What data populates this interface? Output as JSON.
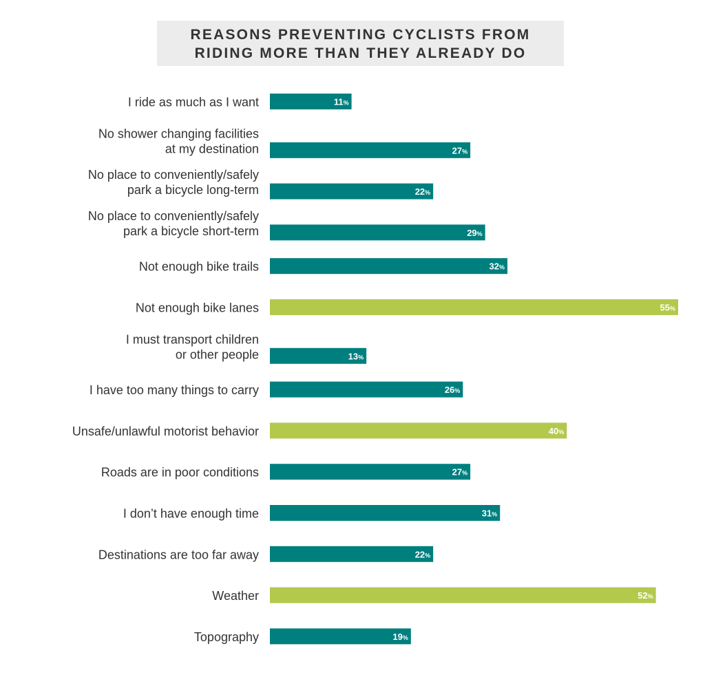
{
  "colors": {
    "normal": "#007f7f",
    "highlight": "#b2c94c",
    "title_bg": "#ececec"
  },
  "chart_data": {
    "type": "bar",
    "orientation": "horizontal",
    "title": "REASONS PREVENTING CYCLISTS FROM RIDING MORE THAN THEY ALREADY DO",
    "title_lines": [
      "REASONS PREVENTING CYCLISTS FROM",
      "RIDING MORE THAN THEY ALREADY DO"
    ],
    "xlim": [
      0,
      55
    ],
    "value_suffix": "%",
    "grid": false,
    "legend": "none",
    "categories": [
      {
        "lines": [
          "I ride as much as I want"
        ],
        "value": 11,
        "highlight": false
      },
      {
        "lines": [
          "No shower changing facilities",
          "at my destination"
        ],
        "value": 27,
        "highlight": false
      },
      {
        "lines": [
          "No place to conveniently/safely",
          "park a bicycle long-term"
        ],
        "value": 22,
        "highlight": false
      },
      {
        "lines": [
          "No place to conveniently/safely",
          "park a bicycle short-term"
        ],
        "value": 29,
        "highlight": false
      },
      {
        "lines": [
          "Not enough bike trails"
        ],
        "value": 32,
        "highlight": false
      },
      {
        "lines": [
          "Not enough bike lanes"
        ],
        "value": 55,
        "highlight": true
      },
      {
        "lines": [
          "I must transport children",
          "or other people"
        ],
        "value": 13,
        "highlight": false
      },
      {
        "lines": [
          "I have too many things to carry"
        ],
        "value": 26,
        "highlight": false
      },
      {
        "lines": [
          "Unsafe/unlawful motorist behavior"
        ],
        "value": 40,
        "highlight": true
      },
      {
        "lines": [
          "Roads are in poor conditions"
        ],
        "value": 27,
        "highlight": false
      },
      {
        "lines": [
          "I don’t have enough time"
        ],
        "value": 31,
        "highlight": false
      },
      {
        "lines": [
          "Destinations are too far away"
        ],
        "value": 22,
        "highlight": false
      },
      {
        "lines": [
          "Weather"
        ],
        "value": 52,
        "highlight": true
      },
      {
        "lines": [
          "Topography"
        ],
        "value": 19,
        "highlight": false
      }
    ]
  }
}
